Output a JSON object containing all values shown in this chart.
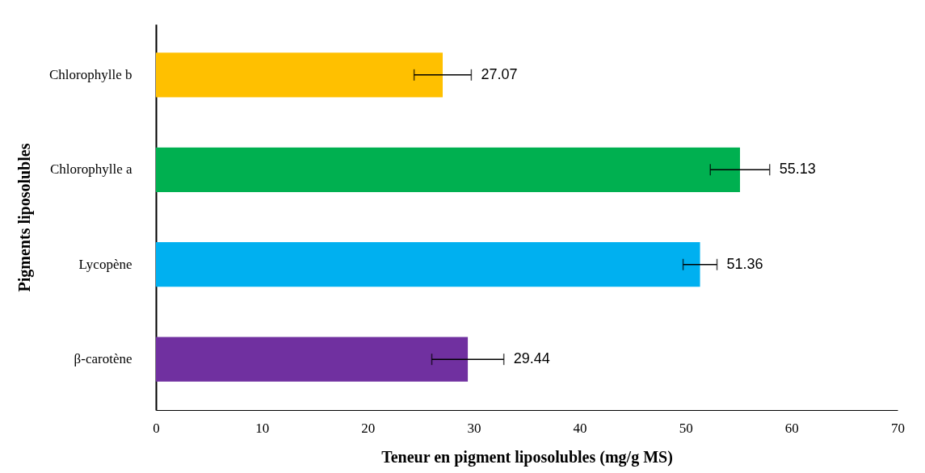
{
  "chart_data": {
    "type": "bar",
    "orientation": "horizontal",
    "xlabel": "Teneur en pigment liposolubles (mg/g MS)",
    "ylabel": "Pigments liposolubles",
    "categories": [
      "Chlorophylle b",
      "Chlorophylle a",
      "Lycopène",
      "β-carotène"
    ],
    "values": [
      27.07,
      55.13,
      51.36,
      29.44
    ],
    "colors": [
      "#ffc000",
      "#00b050",
      "#00b0f0",
      "#7030a0"
    ],
    "errors": [
      2.7,
      2.8,
      1.6,
      3.4
    ],
    "data_labels": true,
    "xlim": [
      0,
      70
    ],
    "xticks": [
      0,
      10,
      20,
      30,
      40,
      50,
      60,
      70
    ],
    "grid": false
  }
}
